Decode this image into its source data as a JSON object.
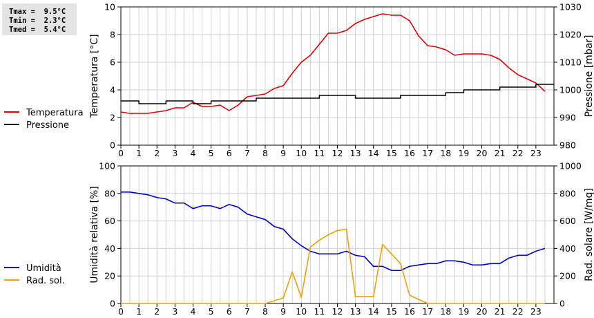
{
  "stats": {
    "tmax": "Tmax =  9.5°C",
    "tmin": "Tmin =  2.3°C",
    "tmed": "Tmed =  5.4°C"
  },
  "chart_data": [
    {
      "type": "line",
      "x": [
        0,
        0.5,
        1,
        1.5,
        2,
        2.5,
        3,
        3.5,
        4,
        4.5,
        5,
        5.5,
        6,
        6.5,
        7,
        7.5,
        8,
        8.5,
        9,
        9.5,
        10,
        10.5,
        11,
        11.5,
        12,
        12.5,
        13,
        13.5,
        14,
        14.5,
        15,
        15.5,
        16,
        16.5,
        17,
        17.5,
        18,
        18.5,
        19,
        19.5,
        20,
        20.5,
        21,
        21.5,
        22,
        22.5,
        23,
        23.5
      ],
      "series": [
        {
          "name": "Temperatura",
          "axis": "left",
          "color": "#e00000",
          "values": [
            2.4,
            2.3,
            2.3,
            2.3,
            2.4,
            2.5,
            2.7,
            2.7,
            3.1,
            2.8,
            2.8,
            2.9,
            2.5,
            2.9,
            3.5,
            3.6,
            3.7,
            4.1,
            4.3,
            5.2,
            6.0,
            6.5,
            7.3,
            8.1,
            8.1,
            8.3,
            8.8,
            9.1,
            9.3,
            9.5,
            9.4,
            9.4,
            9.0,
            7.9,
            7.2,
            7.1,
            6.9,
            6.5,
            6.6,
            6.6,
            6.6,
            6.5,
            6.2,
            5.6,
            5.1,
            4.8,
            4.5,
            3.9
          ]
        },
        {
          "name": "Pressione",
          "axis": "right",
          "color": "#000000",
          "values": [
            996,
            996,
            995,
            995,
            995,
            996,
            996,
            996,
            995,
            995,
            996,
            996,
            996,
            996,
            996,
            997,
            997,
            997,
            997,
            997,
            997,
            997,
            998,
            998,
            998,
            998,
            997,
            997,
            997,
            997,
            997,
            998,
            998,
            998,
            998,
            998,
            999,
            999,
            1000,
            1000,
            1000,
            1000,
            1001,
            1001,
            1001,
            1001,
            1002,
            1002
          ]
        }
      ],
      "ylabel_left": "Temperatura [°C]",
      "ylabel_right": "Pressione [mbar]",
      "ylim_left": [
        0,
        10
      ],
      "ylim_right": [
        980,
        1030
      ],
      "yticks_left": [
        "0",
        "2",
        "4",
        "6",
        "8",
        "10"
      ],
      "yticks_right": [
        "980",
        "990",
        "1000",
        "1010",
        "1020",
        "1030"
      ],
      "xticks": [
        "0",
        "1",
        "2",
        "3",
        "4",
        "5",
        "6",
        "7",
        "8",
        "9",
        "10",
        "11",
        "12",
        "13",
        "14",
        "15",
        "16",
        "17",
        "18",
        "19",
        "20",
        "21",
        "22",
        "23"
      ],
      "xlim": [
        0,
        24
      ],
      "grid": true,
      "legend": "left"
    },
    {
      "type": "line",
      "x": [
        0,
        0.5,
        1,
        1.5,
        2,
        2.5,
        3,
        3.5,
        4,
        4.5,
        5,
        5.5,
        6,
        6.5,
        7,
        7.5,
        8,
        8.5,
        9,
        9.5,
        10,
        10.5,
        11,
        11.5,
        12,
        12.5,
        13,
        13.5,
        14,
        14.5,
        15,
        15.5,
        16,
        16.5,
        17,
        17.5,
        18,
        18.5,
        19,
        19.5,
        20,
        20.5,
        21,
        21.5,
        22,
        22.5,
        23,
        23.5
      ],
      "series": [
        {
          "name": "Umidità",
          "axis": "left",
          "color": "#0000c8",
          "values": [
            81,
            81,
            80,
            79,
            77,
            76,
            73,
            73,
            69,
            71,
            71,
            69,
            72,
            70,
            65,
            63,
            61,
            56,
            54,
            47,
            42,
            38,
            36,
            36,
            36,
            38,
            35,
            34,
            27,
            27,
            24,
            24,
            27,
            28,
            29,
            29,
            31,
            31,
            30,
            28,
            28,
            29,
            29,
            33,
            35,
            35,
            38,
            40
          ]
        },
        {
          "name": "Rad. sol.",
          "axis": "right",
          "color": "#f0a000",
          "values": [
            0,
            0,
            0,
            0,
            0,
            0,
            0,
            0,
            0,
            0,
            0,
            0,
            0,
            0,
            0,
            0,
            0,
            20,
            40,
            230,
            45,
            410,
            460,
            500,
            530,
            540,
            50,
            50,
            50,
            430,
            360,
            290,
            60,
            30,
            0,
            0,
            0,
            0,
            0,
            0,
            0,
            0,
            0,
            0,
            0,
            0,
            0,
            0
          ]
        }
      ],
      "ylabel_left": "Umidità relativa [%]",
      "ylabel_right": "Rad. solare [W/mq]",
      "ylim_left": [
        0,
        100
      ],
      "ylim_right": [
        0,
        1000
      ],
      "yticks_left": [
        "0",
        "20",
        "40",
        "60",
        "80",
        "100"
      ],
      "yticks_right": [
        "0",
        "200",
        "400",
        "600",
        "800",
        "1000"
      ],
      "xticks": [
        "0",
        "1",
        "2",
        "3",
        "4",
        "5",
        "6",
        "7",
        "8",
        "9",
        "10",
        "11",
        "12",
        "13",
        "14",
        "15",
        "16",
        "17",
        "18",
        "19",
        "20",
        "21",
        "22",
        "23"
      ],
      "xlim": [
        0,
        24
      ],
      "grid": true,
      "legend": "left"
    }
  ]
}
